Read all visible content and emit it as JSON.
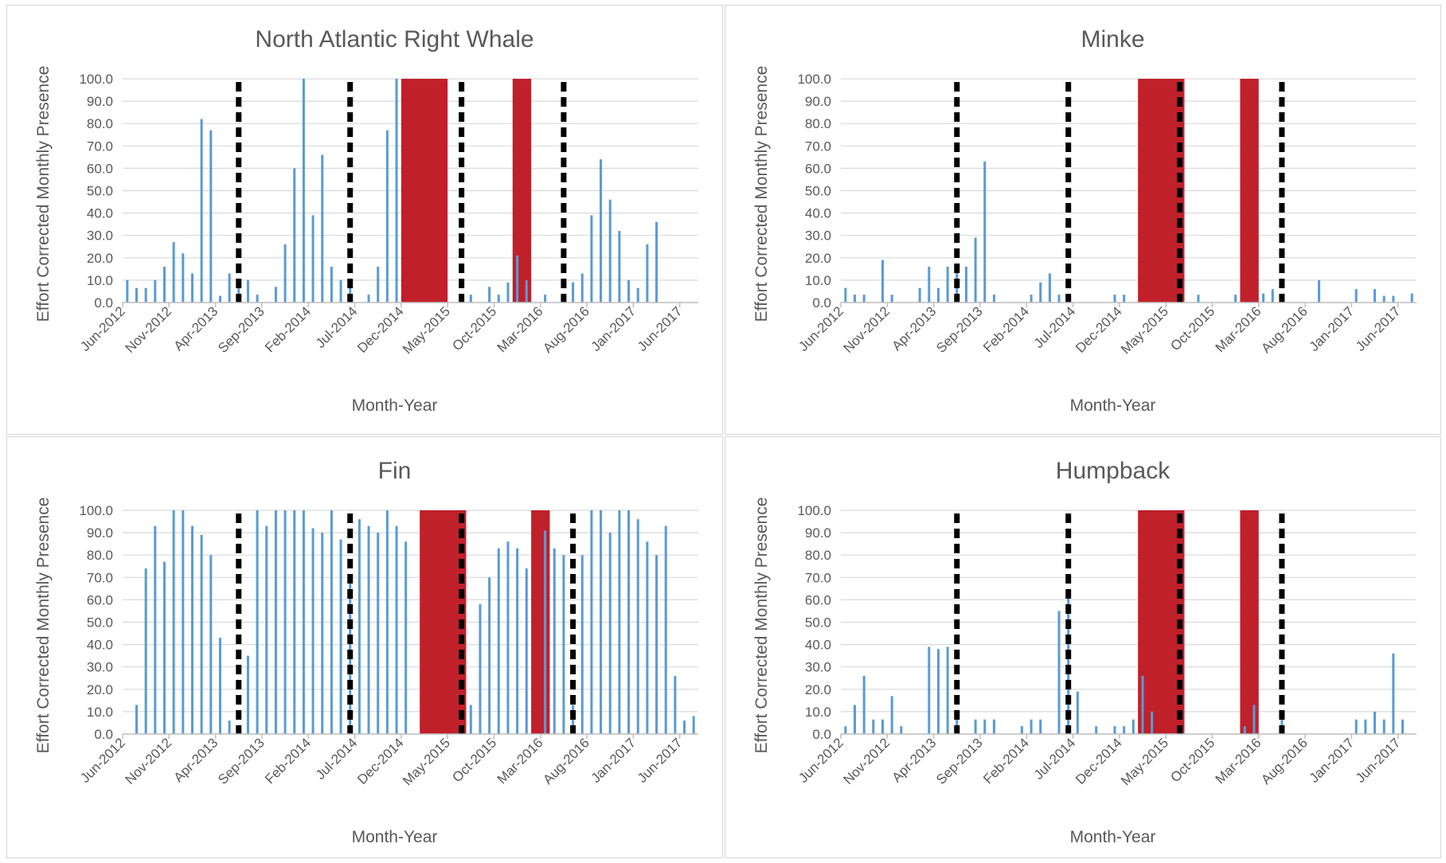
{
  "colors": {
    "bar": "#5b9bd5",
    "gap": "#c0202a",
    "marker": "#000000",
    "grid": "#d9d9d9"
  },
  "chart_data": [
    {
      "type": "bar",
      "title": "North Atlantic Right Whale",
      "xlabel": "Month-Year",
      "ylabel": "Effort Corrected Monthly Presence",
      "ylim": [
        0,
        100
      ],
      "yticks": [
        "0.0",
        "10.0",
        "20.0",
        "30.0",
        "40.0",
        "50.0",
        "60.0",
        "70.0",
        "80.0",
        "90.0",
        "100.0"
      ],
      "x_tick_labels": [
        "Jun-2012",
        "Nov-2012",
        "Apr-2013",
        "Sep-2013",
        "Feb-2014",
        "Jul-2014",
        "Dec-2014",
        "May-2015",
        "Oct-2015",
        "Mar-2016",
        "Aug-2016",
        "Jan-2017",
        "Jun-2017"
      ],
      "values": [
        10,
        6.5,
        6.5,
        10,
        16,
        27,
        22,
        13,
        82,
        77,
        3,
        13,
        6.5,
        10,
        3.5,
        null,
        7,
        26,
        60,
        100,
        39,
        66,
        16,
        10,
        6.5,
        null,
        3.5,
        16,
        77,
        100,
        null,
        null,
        null,
        null,
        null,
        null,
        null,
        3.5,
        null,
        7,
        3.5,
        9,
        21,
        10,
        null,
        3.5,
        null,
        3.5,
        9,
        13,
        39,
        64,
        46,
        32,
        10,
        6.5,
        26,
        36
      ],
      "gaps": [
        [
          30,
          34
        ],
        [
          42,
          43
        ]
      ],
      "markers": [
        12,
        24,
        36,
        47
      ]
    },
    {
      "type": "bar",
      "title": "Minke",
      "xlabel": "Month-Year",
      "ylabel": "Effort Corrected Monthly Presence",
      "ylim": [
        0,
        100
      ],
      "yticks": [
        "0.0",
        "10.0",
        "20.0",
        "30.0",
        "40.0",
        "50.0",
        "60.0",
        "70.0",
        "80.0",
        "90.0",
        "100.0"
      ],
      "x_tick_labels": [
        "Jun-2012",
        "Nov-2012",
        "Apr-2013",
        "Sep-2013",
        "Feb-2014",
        "Jul-2014",
        "Dec-2014",
        "May-2015",
        "Oct-2015",
        "Mar-2016",
        "Aug-2016",
        "Jan-2017",
        "Jun-2017"
      ],
      "values": [
        6.5,
        3.5,
        3.5,
        null,
        19,
        3.5,
        null,
        null,
        6.5,
        16,
        6.5,
        16,
        16,
        16,
        29,
        63,
        3.5,
        null,
        null,
        null,
        3.5,
        9,
        13,
        3.5,
        null,
        null,
        null,
        null,
        null,
        3.5,
        3.5,
        null,
        null,
        null,
        null,
        null,
        null,
        null,
        3.5,
        null,
        null,
        null,
        3.5,
        null,
        null,
        4,
        6,
        null,
        null,
        null,
        null,
        10,
        null,
        null,
        null,
        6,
        null,
        6,
        3,
        3,
        null,
        4
      ],
      "gaps": [
        [
          32,
          36
        ],
        [
          43,
          44
        ]
      ],
      "markers": [
        12,
        24,
        36,
        47
      ]
    },
    {
      "type": "bar",
      "title": "Fin",
      "xlabel": "Month-Year",
      "ylabel": "Effort Corrected Monthly Presence",
      "ylim": [
        0,
        100
      ],
      "yticks": [
        "0.0",
        "10.0",
        "20.0",
        "30.0",
        "40.0",
        "50.0",
        "60.0",
        "70.0",
        "80.0",
        "90.0",
        "100.0"
      ],
      "x_tick_labels": [
        "Jun-2012",
        "Nov-2012",
        "Apr-2013",
        "Sep-2013",
        "Feb-2014",
        "Jul-2014",
        "Dec-2014",
        "May-2015",
        "Oct-2015",
        "Mar-2016",
        "Aug-2016",
        "Jan-2017",
        "Jun-2017"
      ],
      "values": [
        null,
        13,
        74,
        93,
        77,
        100,
        100,
        93,
        89,
        80,
        43,
        6,
        null,
        35,
        100,
        93,
        100,
        100,
        100,
        100,
        92,
        90,
        100,
        87,
        70,
        96,
        93,
        90,
        100,
        93,
        86,
        null,
        null,
        null,
        null,
        null,
        null,
        13,
        58,
        70,
        83,
        86,
        83,
        74,
        null,
        91,
        83,
        80,
        13,
        80,
        100,
        100,
        90,
        100,
        100,
        96,
        86,
        80,
        93,
        26,
        6,
        8
      ],
      "gaps": [
        [
          32,
          36
        ],
        [
          44,
          45
        ]
      ],
      "markers": [
        12,
        24,
        36,
        48
      ]
    },
    {
      "type": "bar",
      "title": "Humpback",
      "xlabel": "Month-Year",
      "ylabel": "Effort Corrected Monthly Presence",
      "ylim": [
        0,
        100
      ],
      "yticks": [
        "0.0",
        "10.0",
        "20.0",
        "30.0",
        "40.0",
        "50.0",
        "60.0",
        "70.0",
        "80.0",
        "90.0",
        "100.0"
      ],
      "x_tick_labels": [
        "Jun-2012",
        "Nov-2012",
        "Apr-2013",
        "Sep-2013",
        "Feb-2014",
        "Jul-2014",
        "Dec-2014",
        "May-2015",
        "Oct-2015",
        "Mar-2016",
        "Aug-2016",
        "Jan-2017",
        "Jun-2017"
      ],
      "values": [
        3.5,
        13,
        26,
        6.5,
        6.5,
        17,
        3.5,
        null,
        null,
        39,
        38,
        39,
        6.5,
        null,
        6.5,
        6.5,
        6.5,
        null,
        null,
        3.5,
        6.5,
        6.5,
        null,
        55,
        63,
        19,
        null,
        3.5,
        null,
        3.5,
        3.5,
        6.5,
        26,
        10,
        null,
        null,
        null,
        null,
        null,
        null,
        null,
        null,
        null,
        3.5,
        13,
        null,
        null,
        6.5,
        null,
        null,
        null,
        null,
        null,
        null,
        null,
        6.5,
        6.5,
        10,
        6.5,
        36,
        6.5
      ],
      "gaps": [
        [
          32,
          36
        ],
        [
          43,
          44
        ]
      ],
      "markers": [
        12,
        24,
        36,
        47
      ]
    }
  ]
}
